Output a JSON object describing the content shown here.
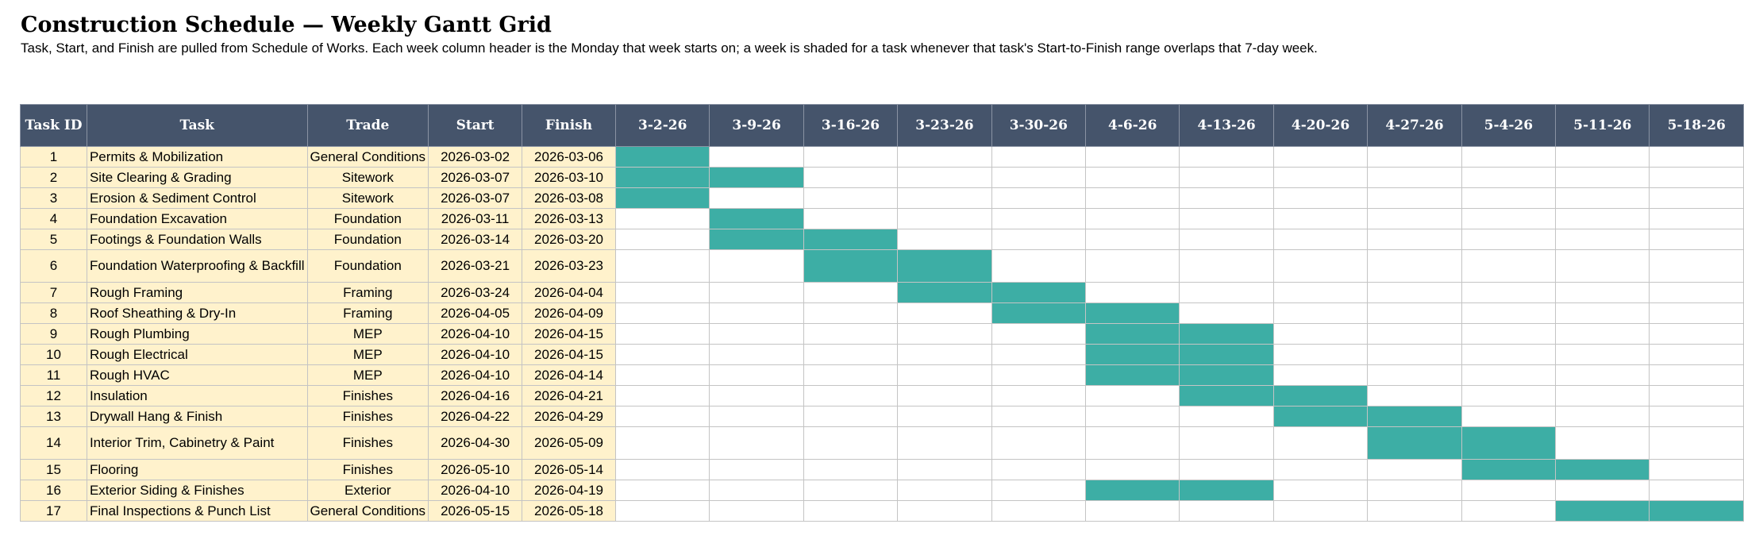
{
  "title": "Construction Schedule — Weekly Gantt Grid",
  "subtitle": "Task, Start, and Finish are pulled from Schedule of Works. Each week column header is the Monday that week starts on; a week is shaded for a task whenever that task's Start-to-Finish range overlaps that 7-day week.",
  "colors": {
    "header_bg": "#45546b",
    "info_bg": "#fff2cc",
    "bar": "#3daea5"
  },
  "columns": {
    "id": "Task ID",
    "task": "Task",
    "trade": "Trade",
    "start": "Start",
    "finish": "Finish"
  },
  "weeks": [
    "3-2-26",
    "3-9-26",
    "3-16-26",
    "3-23-26",
    "3-30-26",
    "4-6-26",
    "4-13-26",
    "4-20-26",
    "4-27-26",
    "5-4-26",
    "5-11-26",
    "5-18-26"
  ],
  "tasks": [
    {
      "id": "1",
      "task": "Permits & Mobilization",
      "trade": "General Conditions",
      "start": "2026-03-02",
      "finish": "2026-03-06",
      "weeks": [
        1,
        0,
        0,
        0,
        0,
        0,
        0,
        0,
        0,
        0,
        0,
        0
      ]
    },
    {
      "id": "2",
      "task": "Site Clearing & Grading",
      "trade": "Sitework",
      "start": "2026-03-07",
      "finish": "2026-03-10",
      "weeks": [
        1,
        1,
        0,
        0,
        0,
        0,
        0,
        0,
        0,
        0,
        0,
        0
      ]
    },
    {
      "id": "3",
      "task": "Erosion & Sediment Control",
      "trade": "Sitework",
      "start": "2026-03-07",
      "finish": "2026-03-08",
      "weeks": [
        1,
        0,
        0,
        0,
        0,
        0,
        0,
        0,
        0,
        0,
        0,
        0
      ]
    },
    {
      "id": "4",
      "task": "Foundation Excavation",
      "trade": "Foundation",
      "start": "2026-03-11",
      "finish": "2026-03-13",
      "weeks": [
        0,
        1,
        0,
        0,
        0,
        0,
        0,
        0,
        0,
        0,
        0,
        0
      ]
    },
    {
      "id": "5",
      "task": "Footings & Foundation Walls",
      "trade": "Foundation",
      "start": "2026-03-14",
      "finish": "2026-03-20",
      "weeks": [
        0,
        1,
        1,
        0,
        0,
        0,
        0,
        0,
        0,
        0,
        0,
        0
      ]
    },
    {
      "id": "6",
      "task": "Foundation Waterproofing & Backfill",
      "trade": "Foundation",
      "start": "2026-03-21",
      "finish": "2026-03-23",
      "weeks": [
        0,
        0,
        1,
        1,
        0,
        0,
        0,
        0,
        0,
        0,
        0,
        0
      ]
    },
    {
      "id": "7",
      "task": "Rough Framing",
      "trade": "Framing",
      "start": "2026-03-24",
      "finish": "2026-04-04",
      "weeks": [
        0,
        0,
        0,
        1,
        1,
        0,
        0,
        0,
        0,
        0,
        0,
        0
      ]
    },
    {
      "id": "8",
      "task": "Roof Sheathing & Dry-In",
      "trade": "Framing",
      "start": "2026-04-05",
      "finish": "2026-04-09",
      "weeks": [
        0,
        0,
        0,
        0,
        1,
        1,
        0,
        0,
        0,
        0,
        0,
        0
      ]
    },
    {
      "id": "9",
      "task": "Rough Plumbing",
      "trade": "MEP",
      "start": "2026-04-10",
      "finish": "2026-04-15",
      "weeks": [
        0,
        0,
        0,
        0,
        0,
        1,
        1,
        0,
        0,
        0,
        0,
        0
      ]
    },
    {
      "id": "10",
      "task": "Rough Electrical",
      "trade": "MEP",
      "start": "2026-04-10",
      "finish": "2026-04-15",
      "weeks": [
        0,
        0,
        0,
        0,
        0,
        1,
        1,
        0,
        0,
        0,
        0,
        0
      ]
    },
    {
      "id": "11",
      "task": "Rough HVAC",
      "trade": "MEP",
      "start": "2026-04-10",
      "finish": "2026-04-14",
      "weeks": [
        0,
        0,
        0,
        0,
        0,
        1,
        1,
        0,
        0,
        0,
        0,
        0
      ]
    },
    {
      "id": "12",
      "task": "Insulation",
      "trade": "Finishes",
      "start": "2026-04-16",
      "finish": "2026-04-21",
      "weeks": [
        0,
        0,
        0,
        0,
        0,
        0,
        1,
        1,
        0,
        0,
        0,
        0
      ]
    },
    {
      "id": "13",
      "task": "Drywall Hang & Finish",
      "trade": "Finishes",
      "start": "2026-04-22",
      "finish": "2026-04-29",
      "weeks": [
        0,
        0,
        0,
        0,
        0,
        0,
        0,
        1,
        1,
        0,
        0,
        0
      ]
    },
    {
      "id": "14",
      "task": "Interior Trim, Cabinetry & Paint",
      "trade": "Finishes",
      "start": "2026-04-30",
      "finish": "2026-05-09",
      "weeks": [
        0,
        0,
        0,
        0,
        0,
        0,
        0,
        0,
        1,
        1,
        0,
        0
      ]
    },
    {
      "id": "15",
      "task": "Flooring",
      "trade": "Finishes",
      "start": "2026-05-10",
      "finish": "2026-05-14",
      "weeks": [
        0,
        0,
        0,
        0,
        0,
        0,
        0,
        0,
        0,
        1,
        1,
        0
      ]
    },
    {
      "id": "16",
      "task": "Exterior Siding & Finishes",
      "trade": "Exterior",
      "start": "2026-04-10",
      "finish": "2026-04-19",
      "weeks": [
        0,
        0,
        0,
        0,
        0,
        1,
        1,
        0,
        0,
        0,
        0,
        0
      ]
    },
    {
      "id": "17",
      "task": "Final Inspections & Punch List",
      "trade": "General Conditions",
      "start": "2026-05-15",
      "finish": "2026-05-18",
      "weeks": [
        0,
        0,
        0,
        0,
        0,
        0,
        0,
        0,
        0,
        0,
        1,
        1
      ]
    }
  ]
}
